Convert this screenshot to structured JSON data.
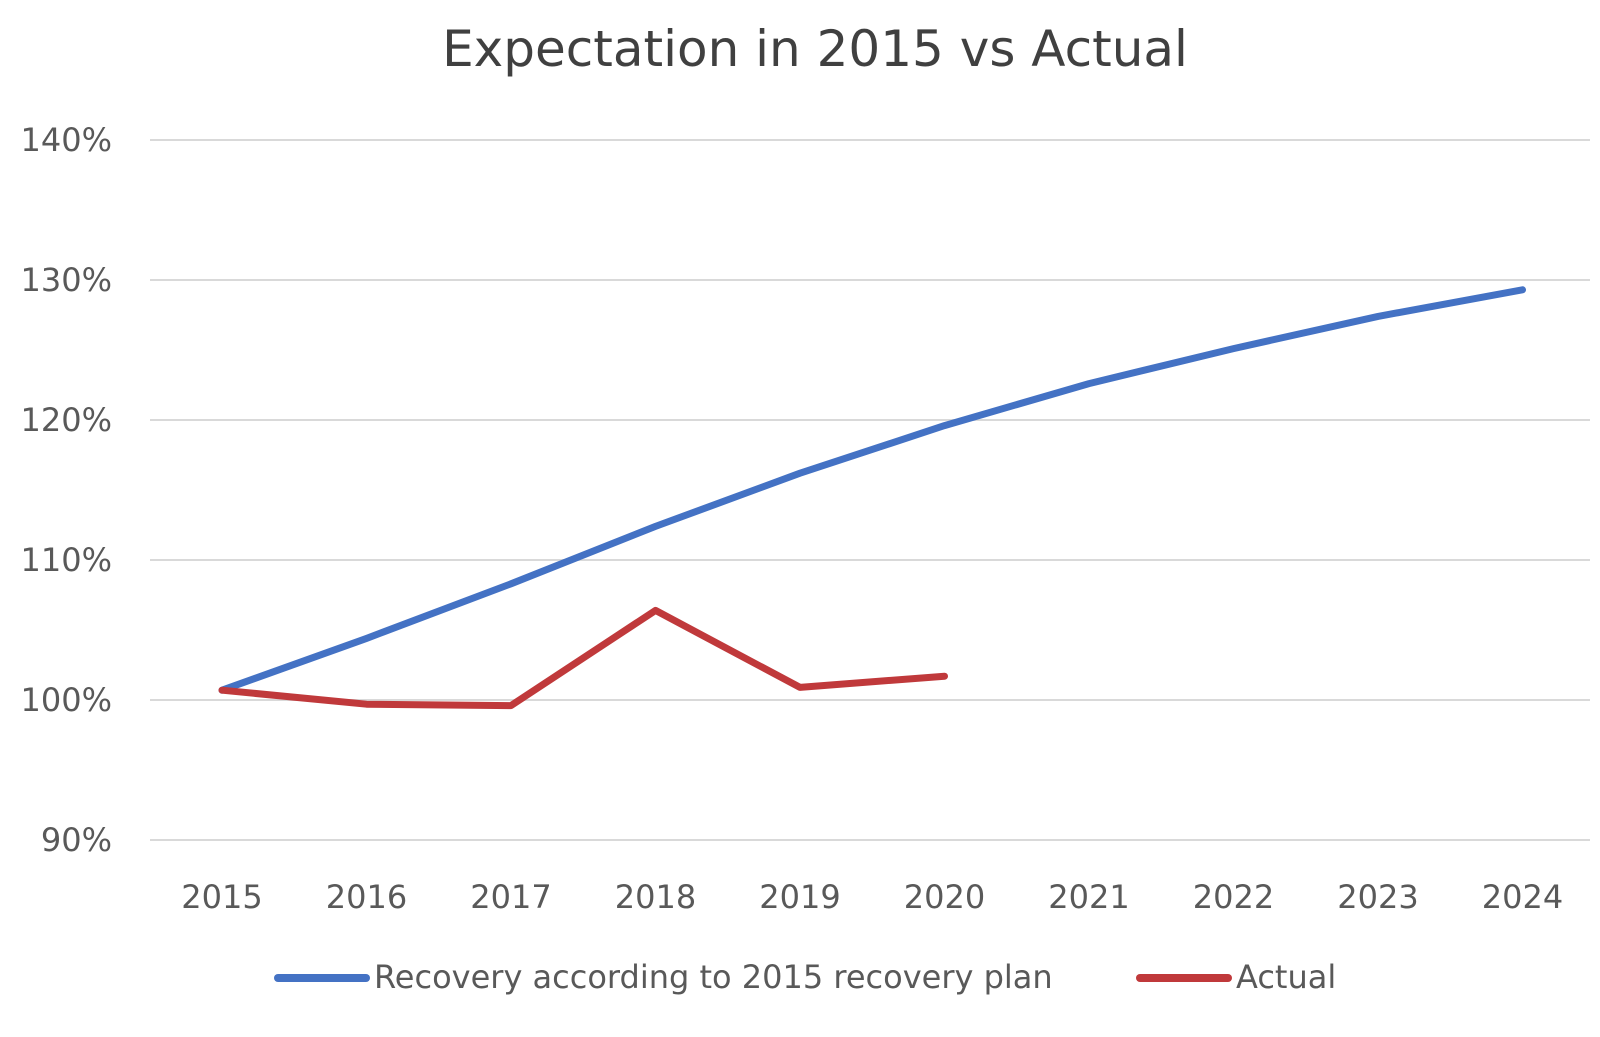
{
  "chart_data": {
    "type": "line",
    "title": "Expectation in 2015 vs Actual",
    "xlabel": "",
    "ylabel": "",
    "categories": [
      "2015",
      "2016",
      "2017",
      "2018",
      "2019",
      "2020",
      "2021",
      "2022",
      "2023",
      "2024"
    ],
    "y_ticks": [
      "90%",
      "100%",
      "110%",
      "120%",
      "130%",
      "140%"
    ],
    "ylim": [
      0.9,
      1.4
    ],
    "grid": true,
    "legend_position": "bottom",
    "series": [
      {
        "name": "Recovery according to 2015 recovery plan",
        "color": "#4472c4",
        "values": [
          1.007,
          1.044,
          1.083,
          1.124,
          1.162,
          1.196,
          1.226,
          1.251,
          1.274,
          1.293
        ]
      },
      {
        "name": "Actual",
        "color": "#c0393b",
        "values": [
          1.007,
          0.997,
          0.996,
          1.064,
          1.009,
          1.017,
          null,
          null,
          null,
          null
        ]
      }
    ]
  }
}
